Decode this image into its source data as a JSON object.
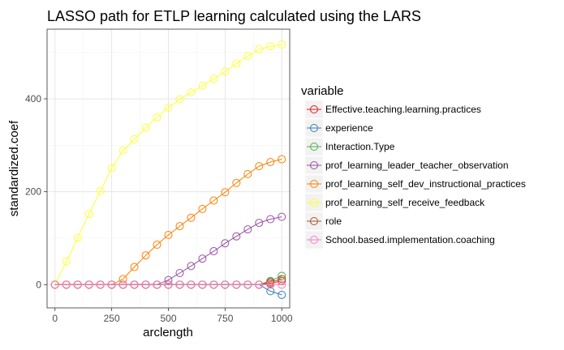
{
  "chart_data": {
    "type": "line",
    "title": "LASSO path for ETLP learning calculated using the LARS",
    "xlabel": "arclength",
    "ylabel": "standardized.coef",
    "xlim": [
      -35,
      1035
    ],
    "ylim": [
      -50,
      550
    ],
    "x_ticks": [
      0,
      250,
      500,
      750,
      1000
    ],
    "y_ticks": [
      0,
      200,
      400
    ],
    "grid": true,
    "legend_title": "variable",
    "legend_position": "right",
    "x": [
      0,
      50,
      100,
      150,
      200,
      250,
      300,
      350,
      400,
      450,
      500,
      550,
      600,
      650,
      700,
      750,
      800,
      850,
      900,
      950,
      1000
    ],
    "series": [
      {
        "name": "Effective.teaching.learning.practices",
        "color": "#E41A1C",
        "values": [
          0,
          0,
          0,
          0,
          0,
          0,
          0,
          0,
          0,
          0,
          0,
          0,
          0,
          0,
          0,
          0,
          0,
          0,
          0,
          3,
          8
        ]
      },
      {
        "name": "experience",
        "color": "#377EB8",
        "values": [
          0,
          0,
          0,
          0,
          0,
          0,
          0,
          0,
          0,
          0,
          0,
          0,
          0,
          0,
          0,
          0,
          0,
          0,
          0,
          -14,
          -22
        ]
      },
      {
        "name": "Interaction.Type",
        "color": "#4DAF4A",
        "values": [
          0,
          0,
          0,
          0,
          0,
          0,
          0,
          0,
          0,
          0,
          0,
          0,
          0,
          0,
          0,
          0,
          0,
          0,
          0,
          8,
          19
        ]
      },
      {
        "name": "prof_learning_leader_teacher_observation",
        "color": "#984EA3",
        "values": [
          0,
          0,
          0,
          0,
          0,
          0,
          0,
          0,
          0,
          0,
          10,
          25,
          40,
          56,
          72,
          89,
          104,
          119,
          133,
          141,
          146
        ]
      },
      {
        "name": "prof_learning_self_dev_instructional_practices",
        "color": "#FF7F00",
        "values": [
          0,
          0,
          0,
          0,
          0,
          0,
          12,
          38,
          63,
          86,
          107,
          126,
          144,
          163,
          181,
          199,
          219,
          238,
          255,
          264,
          270
        ]
      },
      {
        "name": "prof_learning_self_receive_feedback",
        "color": "#FFFF33",
        "values": [
          0,
          50,
          101,
          152,
          202,
          251,
          289,
          313,
          338,
          360,
          381,
          399,
          414,
          428,
          443,
          459,
          476,
          492,
          507,
          513,
          517
        ]
      },
      {
        "name": "role",
        "color": "#A65628",
        "values": [
          0,
          0,
          0,
          0,
          0,
          0,
          0,
          0,
          0,
          0,
          0,
          0,
          0,
          0,
          0,
          0,
          0,
          0,
          0,
          6,
          12
        ]
      },
      {
        "name": "School.based.implementation.coaching",
        "color": "#F781BF",
        "values": [
          0,
          0,
          0,
          0,
          0,
          0,
          0,
          0,
          0,
          0,
          0,
          0,
          0,
          0,
          0,
          0,
          0,
          0,
          0,
          0,
          0
        ]
      }
    ]
  }
}
